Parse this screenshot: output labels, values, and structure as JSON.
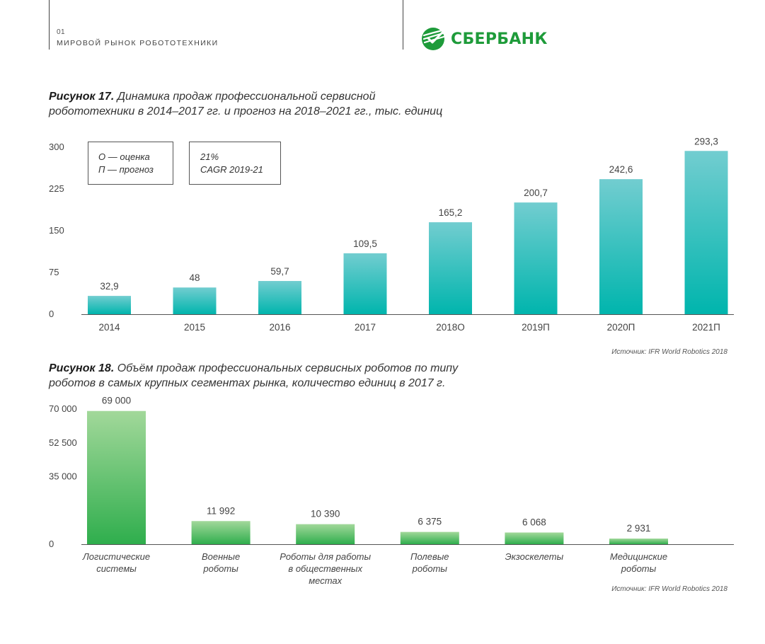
{
  "header": {
    "section_number": "01",
    "section_title": "МИРОВОЙ РЫНОК РОБОТОТЕХНИКИ",
    "logo_text": "СБЕРБАНК",
    "logo_icon": "sberbank-logo-icon",
    "brand_color": "#1e9b3a"
  },
  "figure17": {
    "title_prefix": "Рисунок 17.",
    "title_line1": " Динамика продаж профессиональной сервисной",
    "title_line2": "робототехники в 2014–2017 гг. и прогноз на 2018–2021 гг., тыс. единиц",
    "legend_line1": "О — оценка",
    "legend_line2": "П — прогноз",
    "cagr_line1": "21%",
    "cagr_line2": "CAGR 2019-21",
    "source": "Источник: IFR World Robotics 2018"
  },
  "figure18": {
    "title_prefix": "Рисунок 18.",
    "title_line1": " Объём продаж профессиональных сервисных роботов по типу",
    "title_line2": "роботов в самых крупных сегментах рынка, количество единиц в 2017 г.",
    "source": "Источник: IFR World Robotics 2018"
  },
  "chart_data": [
    {
      "type": "bar",
      "categories": [
        "2014",
        "2015",
        "2016",
        "2017",
        "2018О",
        "2019П",
        "2020П",
        "2021П"
      ],
      "values": [
        32.9,
        48,
        59.7,
        109.5,
        165.2,
        200.7,
        242.6,
        293.3
      ],
      "value_labels": [
        "32,9",
        "48",
        "59,7",
        "109,5",
        "165,2",
        "200,7",
        "242,6",
        "293,3"
      ],
      "yticks": [
        "0",
        "75",
        "150",
        "225",
        "300"
      ],
      "ytick_values": [
        0,
        75,
        150,
        225,
        300
      ],
      "ylim": [
        0,
        300
      ],
      "grid": false,
      "colors": {
        "bar_top": "#72cdd0",
        "bar_bottom": "#00b5ad"
      }
    },
    {
      "type": "bar",
      "categories": [
        [
          "Логистические",
          "системы"
        ],
        [
          "Военные",
          "роботы"
        ],
        [
          "Роботы для работы",
          "в общественных",
          "местах"
        ],
        [
          "Полевые",
          "роботы"
        ],
        [
          "Экзоскелеты"
        ],
        [
          "Медицинские",
          "роботы"
        ]
      ],
      "values": [
        69000,
        11992,
        10390,
        6375,
        6068,
        2931
      ],
      "value_labels": [
        "69 000",
        "11 992",
        "10 390",
        "6 375",
        "6 068",
        "2 931"
      ],
      "yticks": [
        "0",
        "35 000",
        "52 500",
        "70 000"
      ],
      "ytick_values": [
        0,
        35000,
        52500,
        70000
      ],
      "ylim": [
        0,
        70000
      ],
      "grid": false,
      "colors": {
        "bar_top": "#a2d89a",
        "bar_bottom": "#2fae4d"
      }
    }
  ]
}
